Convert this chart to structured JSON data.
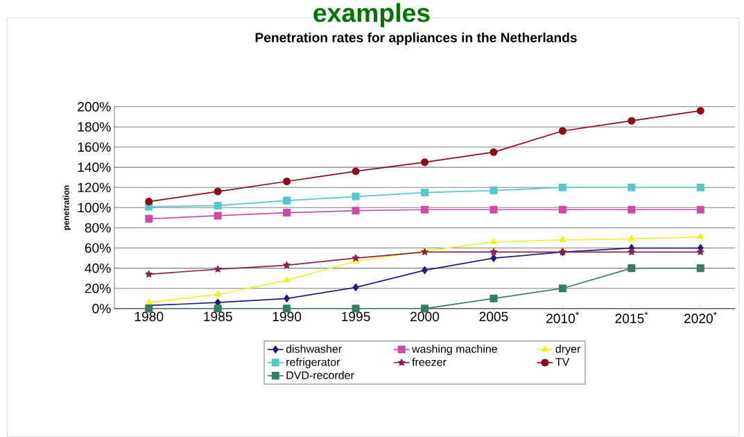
{
  "chart_data": {
    "type": "line",
    "title": "Penetration rates for appliances in the Netherlands",
    "ylabel": "penetration",
    "annotations": [
      "examples"
    ],
    "categories": [
      "1980",
      "1985",
      "1990",
      "1995",
      "2000",
      "2005",
      "2010$^{*}$",
      "2015$^{*}$",
      "2020$^{*}$"
    ],
    "ylim": [
      0,
      200
    ],
    "yticks": [
      {
        "value": 0,
        "label": "0%"
      },
      {
        "value": 20,
        "label": "20%"
      },
      {
        "value": 40,
        "label": "40%"
      },
      {
        "value": 60,
        "label": "60%"
      },
      {
        "value": 80,
        "label": "80%"
      },
      {
        "value": 100,
        "label": "100%"
      },
      {
        "value": 120,
        "label": "120%"
      },
      {
        "value": 140,
        "label": "140%"
      },
      {
        "value": 160,
        "label": "160%"
      },
      {
        "value": 180,
        "label": "180%"
      },
      {
        "value": 200,
        "label": "200%"
      }
    ],
    "grid": "y",
    "legend": "bottom",
    "line_style": "solid",
    "series": [
      {
        "name": "dishwasher",
        "color": "#1f1f7a",
        "marker": "diamond",
        "values": [
          3,
          6,
          10,
          21,
          38,
          50,
          56,
          60,
          60
        ]
      },
      {
        "name": "washing machine",
        "color": "#cc4da6",
        "marker": "square",
        "values": [
          89,
          92,
          95,
          97,
          98,
          98,
          98,
          98,
          98
        ]
      },
      {
        "name": "dryer",
        "color": "#f0f030",
        "marker": "triangle",
        "values": [
          6,
          14,
          28,
          47,
          57,
          66,
          68,
          69,
          71
        ]
      },
      {
        "name": "refrigerator",
        "color": "#55c8c8",
        "marker": "square",
        "values": [
          101,
          102,
          107,
          111,
          115,
          117,
          120,
          120,
          120
        ]
      },
      {
        "name": "freezer",
        "color": "#8b2252",
        "marker": "star",
        "values": [
          34,
          39,
          43,
          50,
          56,
          56,
          56,
          56,
          56
        ]
      },
      {
        "name": "TV",
        "color": "#8b0a1a",
        "marker": "circle",
        "values": [
          106,
          116,
          126,
          136,
          145,
          155,
          176,
          186,
          196
        ]
      },
      {
        "name": "DVD-recorder",
        "color": "#3a7a6a",
        "marker": "square",
        "values": [
          0,
          0,
          0,
          0,
          0,
          10,
          20,
          40,
          40
        ]
      }
    ]
  }
}
